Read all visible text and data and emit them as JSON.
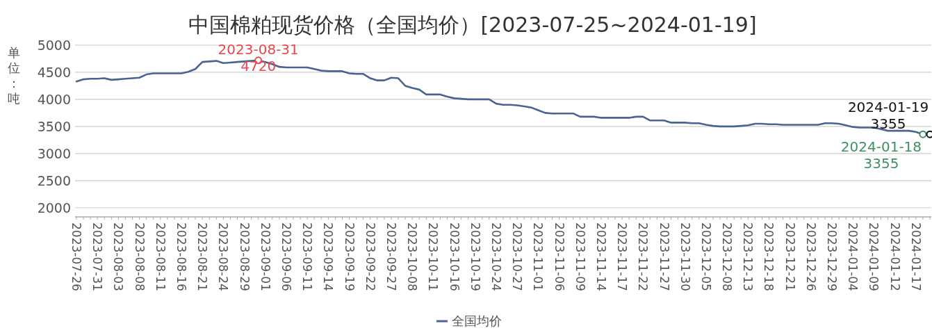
{
  "chart_data": {
    "type": "line",
    "title": "中国棉粕现货价格（全国均价）[2023-07-25~2024-01-19]",
    "ylabel": "单位：吨",
    "categories": [
      "2023-07-26",
      null,
      null,
      "2023-07-31",
      null,
      null,
      "2023-08-03",
      null,
      null,
      "2023-08-08",
      null,
      null,
      "2023-08-11",
      null,
      null,
      "2023-08-16",
      null,
      null,
      "2023-08-21",
      null,
      null,
      "2023-08-24",
      null,
      null,
      "2023-08-29",
      null,
      null,
      "2023-09-01",
      null,
      null,
      "2023-09-06",
      null,
      null,
      "2023-09-11",
      null,
      null,
      "2023-09-14",
      null,
      null,
      "2023-09-19",
      null,
      null,
      "2023-09-22",
      null,
      null,
      "2023-09-27",
      null,
      null,
      "2023-10-08",
      null,
      null,
      "2023-10-11",
      null,
      null,
      "2023-10-16",
      null,
      null,
      "2023-10-19",
      null,
      null,
      "2023-10-24",
      null,
      null,
      "2023-10-27",
      null,
      null,
      "2023-11-01",
      null,
      null,
      "2023-11-06",
      null,
      null,
      "2023-11-09",
      null,
      null,
      "2023-11-14",
      null,
      null,
      "2023-11-17",
      null,
      null,
      "2023-11-22",
      null,
      null,
      "2023-11-27",
      null,
      null,
      "2023-11-30",
      null,
      null,
      "2023-12-05",
      null,
      null,
      "2023-12-08",
      null,
      null,
      "2023-12-13",
      null,
      null,
      "2023-12-18",
      null,
      null,
      "2023-12-21",
      null,
      null,
      "2023-12-26",
      null,
      null,
      "2023-12-29",
      null,
      null,
      "2024-01-04",
      null,
      null,
      "2024-01-09",
      null,
      null,
      "2024-01-12",
      null,
      null,
      "2024-01-17",
      null,
      null
    ],
    "series": [
      {
        "name": "全国均价",
        "color": "#4a6491",
        "values": [
          4330,
          4370,
          4380,
          4380,
          4390,
          4360,
          4370,
          4380,
          4390,
          4400,
          4460,
          4480,
          4480,
          4480,
          4480,
          4480,
          4510,
          4560,
          4690,
          4700,
          4710,
          4670,
          4680,
          4690,
          4700,
          4710,
          4720,
          4690,
          4650,
          4600,
          4590,
          4590,
          4590,
          4590,
          4560,
          4530,
          4520,
          4520,
          4520,
          4480,
          4470,
          4470,
          4390,
          4350,
          4350,
          4400,
          4390,
          4250,
          4210,
          4180,
          4090,
          4090,
          4090,
          4050,
          4020,
          4010,
          4000,
          4000,
          4000,
          4000,
          3920,
          3900,
          3900,
          3890,
          3870,
          3850,
          3800,
          3750,
          3740,
          3740,
          3740,
          3740,
          3680,
          3680,
          3680,
          3660,
          3660,
          3660,
          3660,
          3660,
          3680,
          3680,
          3610,
          3610,
          3610,
          3570,
          3570,
          3570,
          3560,
          3560,
          3530,
          3510,
          3500,
          3500,
          3500,
          3510,
          3520,
          3550,
          3550,
          3540,
          3540,
          3530,
          3530,
          3530,
          3530,
          3530,
          3530,
          3560,
          3560,
          3550,
          3520,
          3490,
          3480,
          3480,
          3480,
          3450,
          3420,
          3420,
          3420,
          3420,
          3400,
          3355,
          3355
        ]
      }
    ],
    "annotations": [
      {
        "text": "2023-08-31\n4720",
        "y": 4720
      },
      "2024-01-18\n3355",
      {
        "text": "2024-01-19\n3355",
        "y": 3355
      }
    ],
    "ylim": [
      1830,
      5000
    ],
    "yticks": [
      2000,
      2500,
      3000,
      3500,
      4000,
      4500,
      5000
    ],
    "grid": "y",
    "legend": "bottom",
    "marker": "none",
    "line_style": "solid"
  }
}
